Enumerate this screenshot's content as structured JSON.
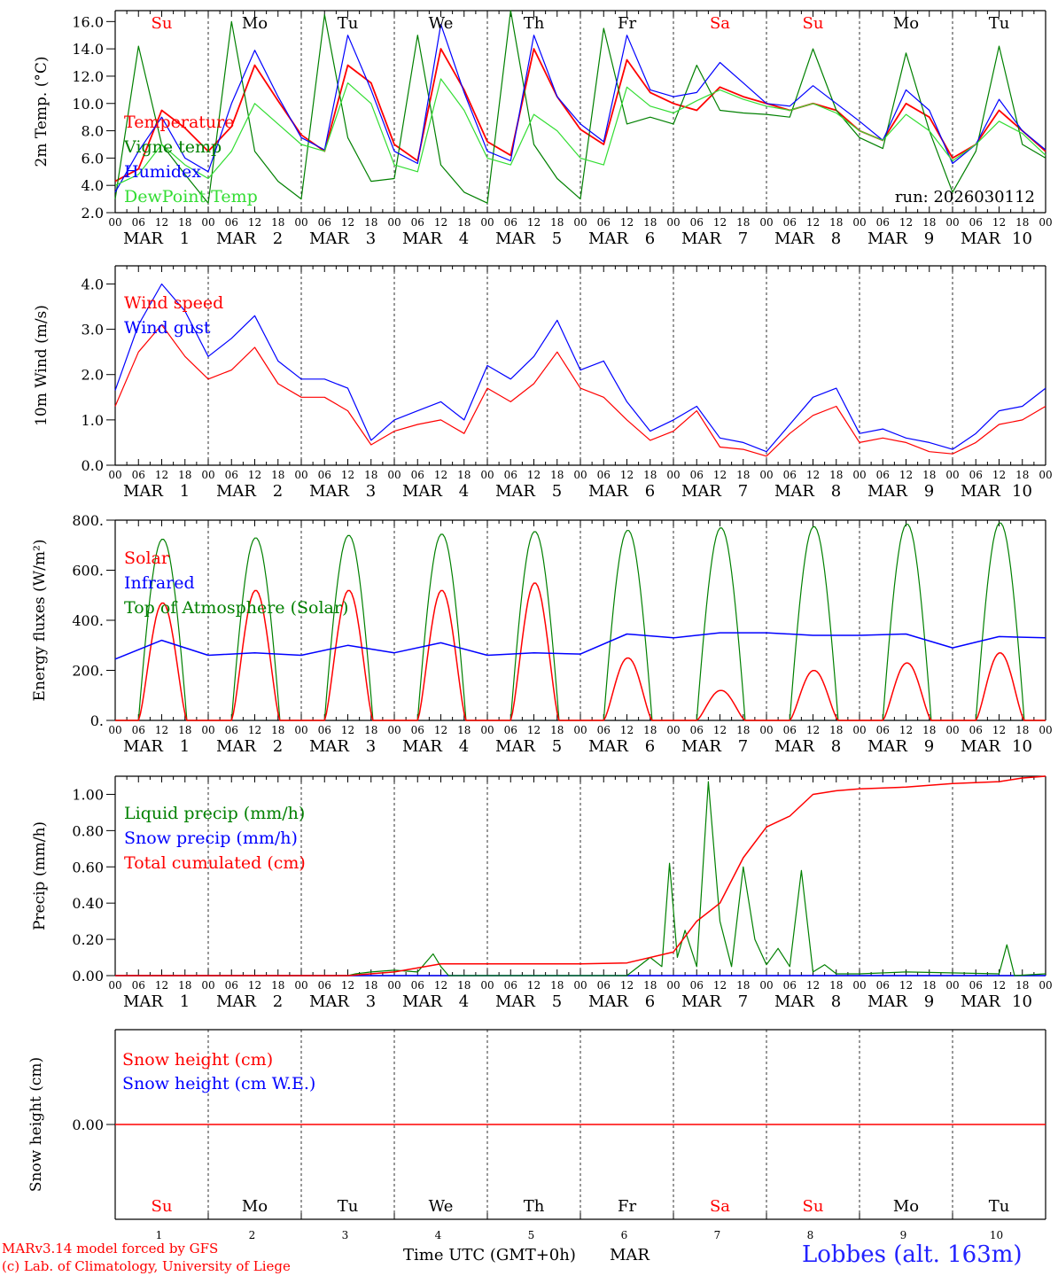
{
  "colors": {
    "red": "#ff0000",
    "green": "#008000",
    "blue": "#0000ff",
    "lightgreen": "#33dd33",
    "axis": "#000000"
  },
  "dates": {
    "month": "MAR",
    "days": [
      "1",
      "2",
      "3",
      "4",
      "5",
      "6",
      "7",
      "8",
      "9",
      "10"
    ],
    "hour_ticks": [
      "00",
      "06",
      "12",
      "18"
    ],
    "weekdays": [
      "Su",
      "Mo",
      "Tu",
      "We",
      "Th",
      "Fr",
      "Sa",
      "Su",
      "Mo",
      "Tu"
    ],
    "weekday_colors": [
      "#ff0000",
      "#000000",
      "#000000",
      "#000000",
      "#000000",
      "#000000",
      "#ff0000",
      "#ff0000",
      "#000000",
      "#000000"
    ]
  },
  "chart_data": [
    {
      "type": "line",
      "ylabel": "2m Temp. (°C)",
      "ylim": [
        2.0,
        16.8
      ],
      "yticks": [
        "2.0",
        "4.0",
        "6.0",
        "8.0",
        "10.0",
        "12.0",
        "14.0",
        "16.0"
      ],
      "annotation": "run: 2026030112",
      "legend": [
        {
          "label": "Temperature",
          "color": "#ff0000"
        },
        {
          "label": "Vigne temp",
          "color": "#008000"
        },
        {
          "label": "Humidex",
          "color": "#0000ff"
        },
        {
          "label": "DewPoint Temp",
          "color": "#33dd33"
        }
      ],
      "x_hours": [
        0,
        6,
        12,
        18,
        24,
        30,
        36,
        42,
        48,
        54,
        60,
        66,
        72,
        78,
        84,
        90,
        96,
        102,
        108,
        114,
        120,
        126,
        132,
        138,
        144,
        150,
        156,
        162,
        168,
        174,
        180,
        186,
        192,
        198,
        204,
        210,
        216,
        222,
        228,
        234,
        240
      ],
      "series": [
        {
          "name": "Temperature",
          "color": "#ff0000",
          "values": [
            4.3,
            5.2,
            9.5,
            8.2,
            6.5,
            8.3,
            12.8,
            10.2,
            7.7,
            6.5,
            12.8,
            11.5,
            7.0,
            5.8,
            14.0,
            11.0,
            7.2,
            6.2,
            14.0,
            10.5,
            8.1,
            7.0,
            13.2,
            10.8,
            10.0,
            9.5,
            11.2,
            10.5,
            10.0,
            9.5,
            10.0,
            9.5,
            8.0,
            7.3,
            10.0,
            9.0,
            6.0,
            7.0,
            9.5,
            8.0,
            6.5
          ]
        },
        {
          "name": "Vigne temp",
          "color": "#008000",
          "values": [
            3.0,
            14.2,
            7.0,
            4.8,
            2.7,
            16.0,
            6.5,
            4.3,
            3.0,
            16.5,
            7.5,
            4.3,
            4.5,
            15.0,
            5.5,
            3.5,
            2.7,
            16.8,
            7.0,
            4.5,
            3.0,
            15.5,
            8.5,
            9.0,
            8.5,
            12.8,
            9.5,
            9.3,
            9.2,
            9.0,
            14.0,
            9.5,
            7.5,
            6.7,
            13.7,
            8.0,
            3.5,
            6.5,
            14.2,
            7.0,
            6.0
          ]
        },
        {
          "name": "Humidex",
          "color": "#0000ff",
          "values": [
            3.5,
            6.5,
            9.0,
            6.0,
            5.0,
            10.0,
            13.9,
            10.5,
            7.5,
            6.6,
            15.0,
            11.0,
            6.5,
            5.6,
            15.8,
            10.8,
            6.5,
            5.8,
            15.0,
            10.5,
            8.5,
            7.2,
            15.0,
            11.0,
            10.5,
            10.8,
            13.0,
            11.5,
            10.0,
            9.8,
            11.3,
            10.0,
            8.7,
            7.3,
            11.0,
            9.5,
            5.6,
            7.0,
            10.3,
            8.0,
            6.6
          ]
        },
        {
          "name": "DewPoint Temp",
          "color": "#33dd33",
          "values": [
            4.0,
            4.8,
            7.0,
            5.5,
            4.5,
            6.5,
            10.0,
            8.5,
            7.0,
            6.5,
            11.5,
            10.0,
            5.5,
            5.0,
            11.8,
            9.5,
            6.0,
            5.5,
            9.2,
            8.0,
            6.0,
            5.5,
            11.2,
            9.8,
            9.3,
            10.2,
            11.0,
            10.3,
            9.8,
            9.5,
            10.0,
            9.3,
            8.0,
            7.3,
            9.2,
            8.0,
            5.8,
            7.0,
            8.7,
            7.8,
            6.2
          ]
        }
      ]
    },
    {
      "type": "line",
      "ylabel": "10m Wind (m/s)",
      "ylim": [
        0.0,
        4.4
      ],
      "yticks": [
        "0.0",
        "1.0",
        "2.0",
        "3.0",
        "4.0"
      ],
      "legend": [
        {
          "label": "Wind speed",
          "color": "#ff0000"
        },
        {
          "label": "Wind gust",
          "color": "#0000ff"
        }
      ],
      "x_hours": [
        0,
        6,
        12,
        18,
        24,
        30,
        36,
        42,
        48,
        54,
        60,
        66,
        72,
        78,
        84,
        90,
        96,
        102,
        108,
        114,
        120,
        126,
        132,
        138,
        144,
        150,
        156,
        162,
        168,
        174,
        180,
        186,
        192,
        198,
        204,
        210,
        216,
        222,
        228,
        234,
        240
      ],
      "series": [
        {
          "name": "Wind speed",
          "color": "#ff0000",
          "values": [
            1.3,
            2.5,
            3.1,
            2.4,
            1.9,
            2.1,
            2.6,
            1.8,
            1.5,
            1.5,
            1.2,
            0.45,
            0.75,
            0.9,
            1.0,
            0.7,
            1.7,
            1.4,
            1.8,
            2.5,
            1.7,
            1.5,
            1.0,
            0.55,
            0.75,
            1.2,
            0.4,
            0.35,
            0.2,
            0.7,
            1.1,
            1.3,
            0.5,
            0.6,
            0.5,
            0.3,
            0.25,
            0.5,
            0.9,
            1.0,
            1.3
          ]
        },
        {
          "name": "Wind gust",
          "color": "#0000ff",
          "values": [
            1.65,
            3.1,
            4.0,
            3.4,
            2.4,
            2.8,
            3.3,
            2.3,
            1.9,
            1.9,
            1.7,
            0.55,
            1.0,
            1.2,
            1.4,
            1.0,
            2.2,
            1.9,
            2.4,
            3.2,
            2.1,
            2.3,
            1.4,
            0.75,
            1.0,
            1.3,
            0.6,
            0.5,
            0.3,
            0.9,
            1.5,
            1.7,
            0.7,
            0.8,
            0.6,
            0.5,
            0.35,
            0.7,
            1.2,
            1.3,
            1.7
          ]
        }
      ]
    },
    {
      "type": "line",
      "ylabel": "Energy fluxes (W/m²)",
      "ylim": [
        0,
        800
      ],
      "yticks": [
        "0.",
        "200.",
        "400.",
        "600.",
        "800."
      ],
      "legend": [
        {
          "label": "Solar",
          "color": "#ff0000"
        },
        {
          "label": "Infrared",
          "color": "#0000ff"
        },
        {
          "label": "Top of Atmosphere (Solar)",
          "color": "#008000"
        }
      ],
      "toa_peaks": [
        725,
        730,
        740,
        745,
        755,
        760,
        770,
        775,
        785,
        790
      ],
      "solar_peaks": [
        470,
        520,
        520,
        520,
        550,
        250,
        120,
        200,
        230,
        270
      ],
      "infrared": {
        "x_hours": [
          0,
          12,
          24,
          36,
          48,
          60,
          72,
          84,
          96,
          108,
          120,
          132,
          144,
          156,
          168,
          180,
          192,
          204,
          216,
          228,
          240
        ],
        "values": [
          245,
          320,
          260,
          270,
          260,
          300,
          270,
          310,
          260,
          270,
          265,
          345,
          330,
          350,
          350,
          340,
          340,
          345,
          290,
          335,
          330
        ]
      }
    },
    {
      "type": "line",
      "ylabel": "Precip (mm/h)",
      "ylim": [
        0.0,
        1.1
      ],
      "yticks": [
        "0.00",
        "0.20",
        "0.40",
        "0.60",
        "0.80",
        "1.00"
      ],
      "legend": [
        {
          "label": "Liquid precip (mm/h)",
          "color": "#008000"
        },
        {
          "label": "Snow precip (mm/h)",
          "color": "#0000ff"
        },
        {
          "label": "Total cumulated (cm)",
          "color": "#ff0000"
        }
      ],
      "liquid": {
        "x_hours": [
          0,
          60,
          62,
          66,
          72,
          78,
          82,
          84,
          86,
          96,
          132,
          138,
          141,
          143,
          145,
          147,
          150,
          153,
          156,
          159,
          162,
          165,
          168,
          171,
          174,
          177,
          180,
          183,
          186,
          192,
          204,
          228,
          230,
          232,
          240
        ],
        "values": [
          0,
          0,
          0.01,
          0.02,
          0.03,
          0.02,
          0.12,
          0.05,
          0,
          0,
          0,
          0.1,
          0.05,
          0.62,
          0.1,
          0.25,
          0.05,
          1.07,
          0.3,
          0.05,
          0.6,
          0.2,
          0.06,
          0.15,
          0.05,
          0.58,
          0.02,
          0.06,
          0.01,
          0.01,
          0.02,
          0.01,
          0.17,
          0,
          0.01
        ]
      },
      "cumulated": {
        "x_hours": [
          0,
          60,
          72,
          84,
          120,
          132,
          144,
          150,
          156,
          162,
          168,
          174,
          180,
          186,
          192,
          204,
          216,
          228,
          234,
          240
        ],
        "values": [
          0,
          0,
          0.02,
          0.065,
          0.065,
          0.07,
          0.13,
          0.3,
          0.4,
          0.65,
          0.82,
          0.88,
          1.0,
          1.02,
          1.03,
          1.04,
          1.06,
          1.07,
          1.09,
          1.1
        ]
      }
    },
    {
      "type": "line",
      "ylabel": "Snow height (cm)",
      "ylim": [
        -1.0,
        1.0
      ],
      "yticks": [
        "0.00"
      ],
      "legend": [
        {
          "label": "Snow height (cm)",
          "color": "#ff0000"
        },
        {
          "label": "Snow height (cm W.E.)",
          "color": "#0000ff"
        }
      ],
      "series": [
        {
          "name": "Snow height (cm)",
          "color": "#ff0000",
          "values": [
            0,
            0
          ]
        }
      ]
    }
  ],
  "footer": {
    "credit_line1": "MARv3.14 model forced by GFS",
    "credit_line2": "(c) Lab. of Climatology, University of Liege",
    "xlabel": "Time UTC (GMT+0h)",
    "month": "MAR",
    "station": "Lobbes (alt. 163m)"
  }
}
